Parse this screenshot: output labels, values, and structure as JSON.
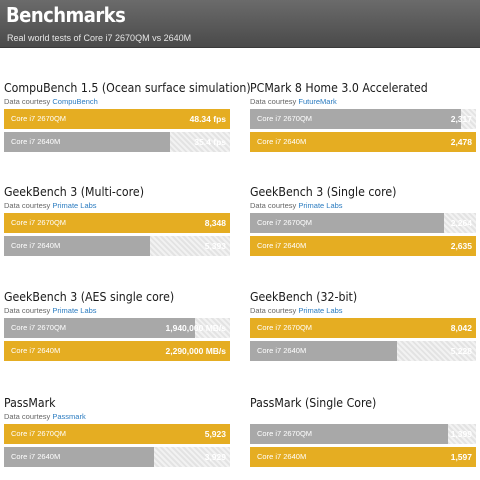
{
  "header": {
    "title": "Benchmarks",
    "subtitle": "Real world tests of Core i7 2670QM vs 2640M"
  },
  "colors": {
    "gold": "#e5ad22",
    "gray": "#a8a8a8"
  },
  "chart_data": [
    {
      "type": "bar",
      "title": "CompuBench 1.5 (Ocean surface simulation)",
      "credit_prefix": "Data courtesy ",
      "credit_link": "CompuBench",
      "bars": [
        {
          "label": "Core i7 2670QM",
          "value": 48.34,
          "display": "48.34 fps",
          "color": "gold"
        },
        {
          "label": "Core i7 2640M",
          "value": 35.4,
          "display": "35.4 fps",
          "color": "gray"
        }
      ]
    },
    {
      "type": "bar",
      "title": "PCMark 8 Home 3.0 Accelerated",
      "credit_prefix": "Data courtesy ",
      "credit_link": "FutureMark",
      "bars": [
        {
          "label": "Core i7 2670QM",
          "value": 2317,
          "display": "2,317",
          "color": "gray"
        },
        {
          "label": "Core i7 2640M",
          "value": 2478,
          "display": "2,478",
          "color": "gold"
        }
      ]
    },
    {
      "type": "bar",
      "title": "GeekBench 3 (Multi-core)",
      "credit_prefix": "Data courtesy ",
      "credit_link": "Primate Labs",
      "bars": [
        {
          "label": "Core i7 2670QM",
          "value": 8348,
          "display": "8,348",
          "color": "gold"
        },
        {
          "label": "Core i7 2640M",
          "value": 5393,
          "display": "5,393",
          "color": "gray"
        }
      ]
    },
    {
      "type": "bar",
      "title": "GeekBench 3 (Single core)",
      "credit_prefix": "Data courtesy ",
      "credit_link": "Primate Labs",
      "bars": [
        {
          "label": "Core i7 2670QM",
          "value": 2264,
          "display": "2,264",
          "color": "gray"
        },
        {
          "label": "Core i7 2640M",
          "value": 2635,
          "display": "2,635",
          "color": "gold"
        }
      ]
    },
    {
      "type": "bar",
      "title": "GeekBench 3 (AES single core)",
      "credit_prefix": "Data courtesy ",
      "credit_link": "Primate Labs",
      "bars": [
        {
          "label": "Core i7 2670QM",
          "value": 1940000,
          "display": "1,940,000 MB/s",
          "color": "gray"
        },
        {
          "label": "Core i7 2640M",
          "value": 2290000,
          "display": "2,290,000 MB/s",
          "color": "gold"
        }
      ]
    },
    {
      "type": "bar",
      "title": "GeekBench (32-bit)",
      "credit_prefix": "Data courtesy ",
      "credit_link": "Primate Labs",
      "bars": [
        {
          "label": "Core i7 2670QM",
          "value": 8042,
          "display": "8,042",
          "color": "gold"
        },
        {
          "label": "Core i7 2640M",
          "value": 5228,
          "display": "5,228",
          "color": "gray"
        }
      ]
    },
    {
      "type": "bar",
      "title": "PassMark",
      "credit_prefix": "Data courtesy ",
      "credit_link": "Passmark",
      "bars": [
        {
          "label": "Core i7 2670QM",
          "value": 5923,
          "display": "5,923",
          "color": "gold"
        },
        {
          "label": "Core i7 2640M",
          "value": 3929,
          "display": "3,929",
          "color": "gray"
        }
      ]
    },
    {
      "type": "bar",
      "title": "PassMark (Single Core)",
      "credit_prefix": "",
      "credit_link": "",
      "bars": [
        {
          "label": "Core i7 2670QM",
          "value": 1399,
          "display": "1,399",
          "color": "gray"
        },
        {
          "label": "Core i7 2640M",
          "value": 1597,
          "display": "1,597",
          "color": "gold"
        }
      ]
    }
  ]
}
